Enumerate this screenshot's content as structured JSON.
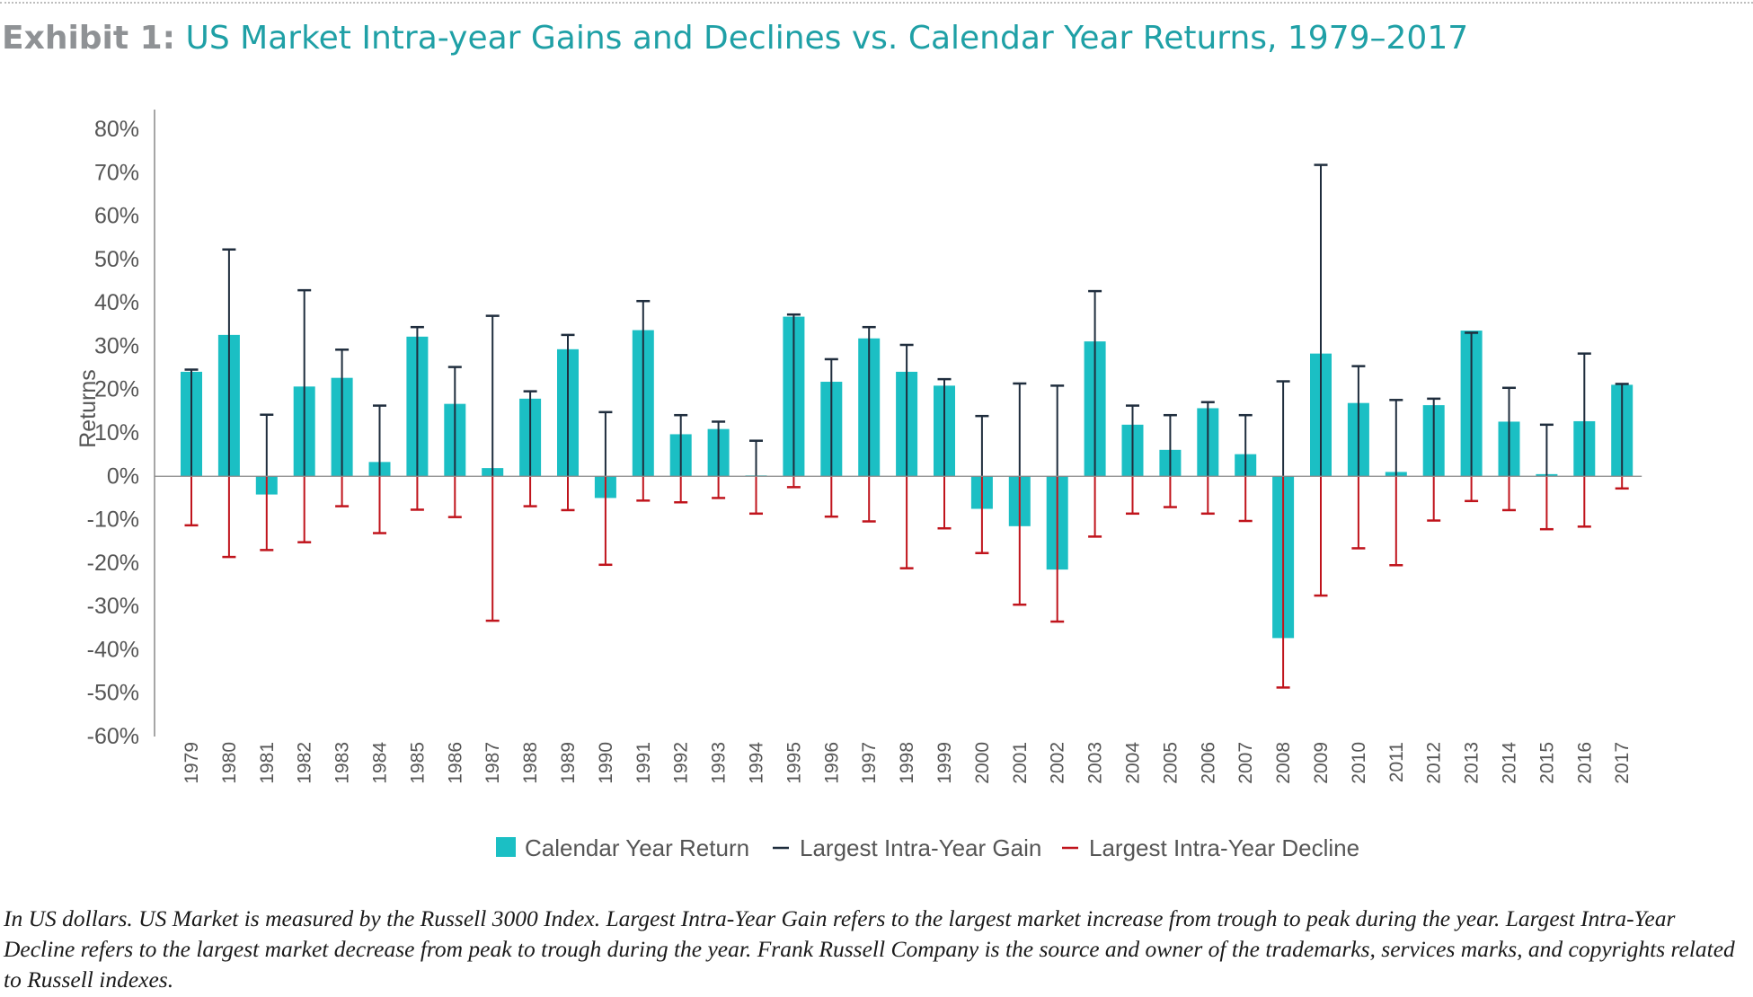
{
  "title": {
    "prefix": "Exhibit 1:",
    "main": "US Market Intra-year Gains and Declines vs. Calendar Year Returns, 1979–2017"
  },
  "footnote": "In US dollars. US Market is measured by the Russell 3000 Index. Largest Intra-Year Gain refers to the largest market increase from trough to peak during the year. Largest Intra-Year Decline refers to the largest market decrease from peak to trough during the year. Frank Russell Company is the source and owner of the trademarks, services marks, and copyrights related to Russell indexes.",
  "colors": {
    "return": "#1bbfc4",
    "gain": "#1f2d3d",
    "decline": "#c0141c",
    "axis": "#555555",
    "title_prefix": "#8f9295",
    "title_main": "#1fa0a6"
  },
  "chart_data": {
    "type": "bar",
    "ylabel": "Returns",
    "xlabel": "",
    "ylim": [
      -60,
      80
    ],
    "yticks": [
      80,
      70,
      60,
      50,
      40,
      30,
      20,
      10,
      0,
      -10,
      -20,
      -30,
      -40,
      -50,
      -60
    ],
    "ytick_format": "%",
    "grid": false,
    "legend_position": "bottom",
    "categories": [
      "1979",
      "1980",
      "1981",
      "1982",
      "1983",
      "1984",
      "1985",
      "1986",
      "1987",
      "1988",
      "1989",
      "1990",
      "1991",
      "1992",
      "1993",
      "1994",
      "1995",
      "1996",
      "1997",
      "1998",
      "1999",
      "2000",
      "2001",
      "2002",
      "2003",
      "2004",
      "2005",
      "2006",
      "2007",
      "2008",
      "2009",
      "2010",
      "2011",
      "2012",
      "2013",
      "2014",
      "2015",
      "2016",
      "2017"
    ],
    "series": [
      {
        "name": "Calendar Year Return",
        "mark": "bar",
        "values": [
          24.1,
          32.6,
          -4.2,
          20.7,
          22.7,
          3.3,
          32.2,
          16.7,
          1.9,
          17.9,
          29.3,
          -5.0,
          33.7,
          9.7,
          10.9,
          0.2,
          36.8,
          21.8,
          31.8,
          24.1,
          20.9,
          -7.5,
          -11.5,
          -21.5,
          31.1,
          11.9,
          6.1,
          15.7,
          5.1,
          -37.3,
          28.3,
          16.9,
          1.0,
          16.4,
          33.6,
          12.6,
          0.5,
          12.7,
          21.1
        ]
      },
      {
        "name": "Largest Intra-Year Gain",
        "mark": "whisker",
        "values": [
          24.6,
          52.3,
          14.2,
          42.9,
          29.2,
          16.3,
          34.4,
          25.2,
          37.0,
          19.6,
          32.6,
          14.8,
          40.4,
          14.1,
          12.6,
          8.2,
          37.3,
          27.0,
          34.4,
          30.3,
          22.4,
          13.9,
          21.4,
          20.9,
          42.7,
          16.3,
          14.1,
          17.1,
          14.1,
          21.9,
          71.8,
          25.4,
          17.6,
          17.9,
          33.1,
          20.4,
          11.9,
          28.3,
          21.3
        ]
      },
      {
        "name": "Largest Intra-Year Decline",
        "mark": "whisker",
        "values": [
          -11.3,
          -18.6,
          -17.0,
          -15.2,
          -6.9,
          -13.1,
          -7.7,
          -9.4,
          -33.3,
          -6.9,
          -7.8,
          -20.4,
          -5.6,
          -6.0,
          -5.0,
          -8.6,
          -2.5,
          -9.3,
          -10.4,
          -21.2,
          -12.0,
          -17.7,
          -29.6,
          -33.5,
          -13.9,
          -8.6,
          -7.1,
          -8.6,
          -10.3,
          -48.7,
          -27.5,
          -16.6,
          -20.5,
          -10.2,
          -5.7,
          -7.8,
          -12.2,
          -11.6,
          -2.8
        ]
      }
    ]
  }
}
